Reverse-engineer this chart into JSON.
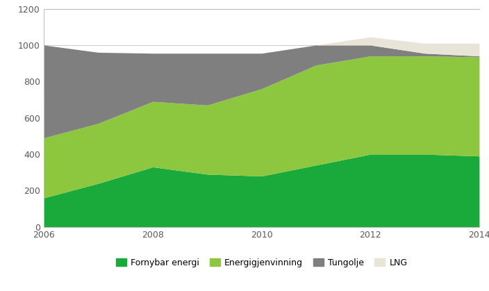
{
  "years": [
    2006,
    2007,
    2008,
    2009,
    2010,
    2011,
    2012,
    2013,
    2014
  ],
  "fornybar_energi": [
    160,
    240,
    330,
    290,
    280,
    340,
    400,
    400,
    390
  ],
  "energigjenvinning": [
    330,
    330,
    360,
    380,
    480,
    550,
    540,
    540,
    545
  ],
  "tungolje": [
    510,
    390,
    265,
    285,
    195,
    110,
    60,
    15,
    5
  ],
  "lng": [
    0,
    0,
    0,
    0,
    0,
    0,
    45,
    55,
    70
  ],
  "colors": {
    "fornybar_energi": "#1aaa3c",
    "energigjenvinning": "#8dc63f",
    "tungolje": "#7f7f7f",
    "lng": "#e8e4d8"
  },
  "legend_labels": [
    "Fornybar energi",
    "Energigjenvinning",
    "Tungolje",
    "LNG"
  ],
  "ylim": [
    0,
    1200
  ],
  "yticks": [
    0,
    200,
    400,
    600,
    800,
    1000,
    1200
  ],
  "xticks": [
    2006,
    2008,
    2010,
    2012,
    2014
  ],
  "bg_color": "#ffffff",
  "axis_color": "#595959",
  "grid_color": "#bfbfbf"
}
